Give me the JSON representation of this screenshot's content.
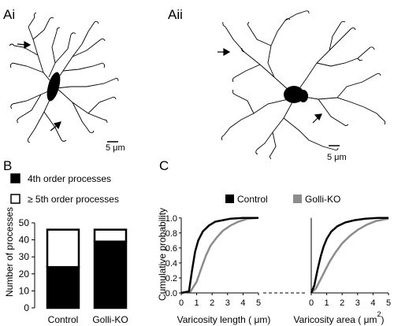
{
  "panels": {
    "ai": {
      "label": "Ai",
      "scale_label": "5 μm"
    },
    "aii": {
      "label": "Aii",
      "scale_label": "5 μm"
    },
    "b": {
      "label": "B"
    },
    "c": {
      "label": "C"
    }
  },
  "legend_b": {
    "fourth": "4th order processes",
    "fifth": "≥ 5th order processes",
    "fourth_color": "#000000",
    "fifth_color": "#ffffff"
  },
  "legend_c": {
    "control": "Control",
    "golli": "Golli-KO",
    "control_color": "#000000",
    "golli_color": "#8c8c8c"
  },
  "chart_data": [
    {
      "type": "bar",
      "stacked": true,
      "categories": [
        "Control",
        "Golli-KO"
      ],
      "series": [
        {
          "name": "4th order processes",
          "values": [
            24,
            39
          ]
        },
        {
          "name": "≥ 5th order processes",
          "values": [
            22,
            7
          ]
        }
      ],
      "ylabel": "Number of processes",
      "ylim": [
        0,
        50
      ],
      "yticks": [
        "0",
        "10",
        "20",
        "30",
        "40",
        "50"
      ]
    },
    {
      "type": "line",
      "xlabel": "Varicosity length ( μm)",
      "ylabel": "Cumulative probability",
      "xlim": [
        0,
        5
      ],
      "ylim": [
        0,
        1.05
      ],
      "xticks": [
        "0",
        "1",
        "2",
        "3",
        "4",
        "5"
      ],
      "yticks": [
        "0.0",
        "0.2",
        "0.4",
        "0.6",
        "0.8",
        "1.0"
      ],
      "series": [
        {
          "name": "Control",
          "x": [
            0,
            0.5,
            0.7,
            0.9,
            1.1,
            1.4,
            1.8,
            2.2,
            2.7,
            3.2,
            4.0,
            5.0
          ],
          "y": [
            0,
            0.02,
            0.3,
            0.55,
            0.7,
            0.82,
            0.9,
            0.95,
            0.97,
            0.99,
            1.0,
            1.0
          ]
        },
        {
          "name": "Golli-KO",
          "x": [
            0,
            0.6,
            1.0,
            1.3,
            1.6,
            1.9,
            2.3,
            2.7,
            3.2,
            3.7,
            4.3,
            5.0
          ],
          "y": [
            0,
            0.02,
            0.15,
            0.33,
            0.5,
            0.63,
            0.74,
            0.83,
            0.9,
            0.95,
            0.99,
            1.0
          ]
        }
      ]
    },
    {
      "type": "line",
      "xlabel": "Varicosity area ( μm",
      "xlabel_superscript": "2",
      "xlabel_suffix": ")",
      "xlim": [
        0,
        5
      ],
      "ylim": [
        0,
        1.05
      ],
      "xticks": [
        "0",
        "1",
        "2",
        "3",
        "4",
        "5"
      ],
      "series": [
        {
          "name": "Control",
          "x": [
            0,
            0.2,
            0.4,
            0.6,
            0.8,
            1.0,
            1.3,
            1.7,
            2.2,
            2.8,
            3.5,
            4.3,
            5.0
          ],
          "y": [
            0,
            0.1,
            0.3,
            0.48,
            0.62,
            0.72,
            0.82,
            0.89,
            0.94,
            0.97,
            0.99,
            1.0,
            1.0
          ]
        },
        {
          "name": "Golli-KO",
          "x": [
            0,
            0.3,
            0.6,
            0.9,
            1.2,
            1.6,
            2.0,
            2.5,
            3.0,
            3.6,
            4.2,
            5.0
          ],
          "y": [
            0,
            0.06,
            0.18,
            0.3,
            0.42,
            0.55,
            0.66,
            0.76,
            0.84,
            0.91,
            0.96,
            0.99
          ]
        }
      ]
    }
  ]
}
